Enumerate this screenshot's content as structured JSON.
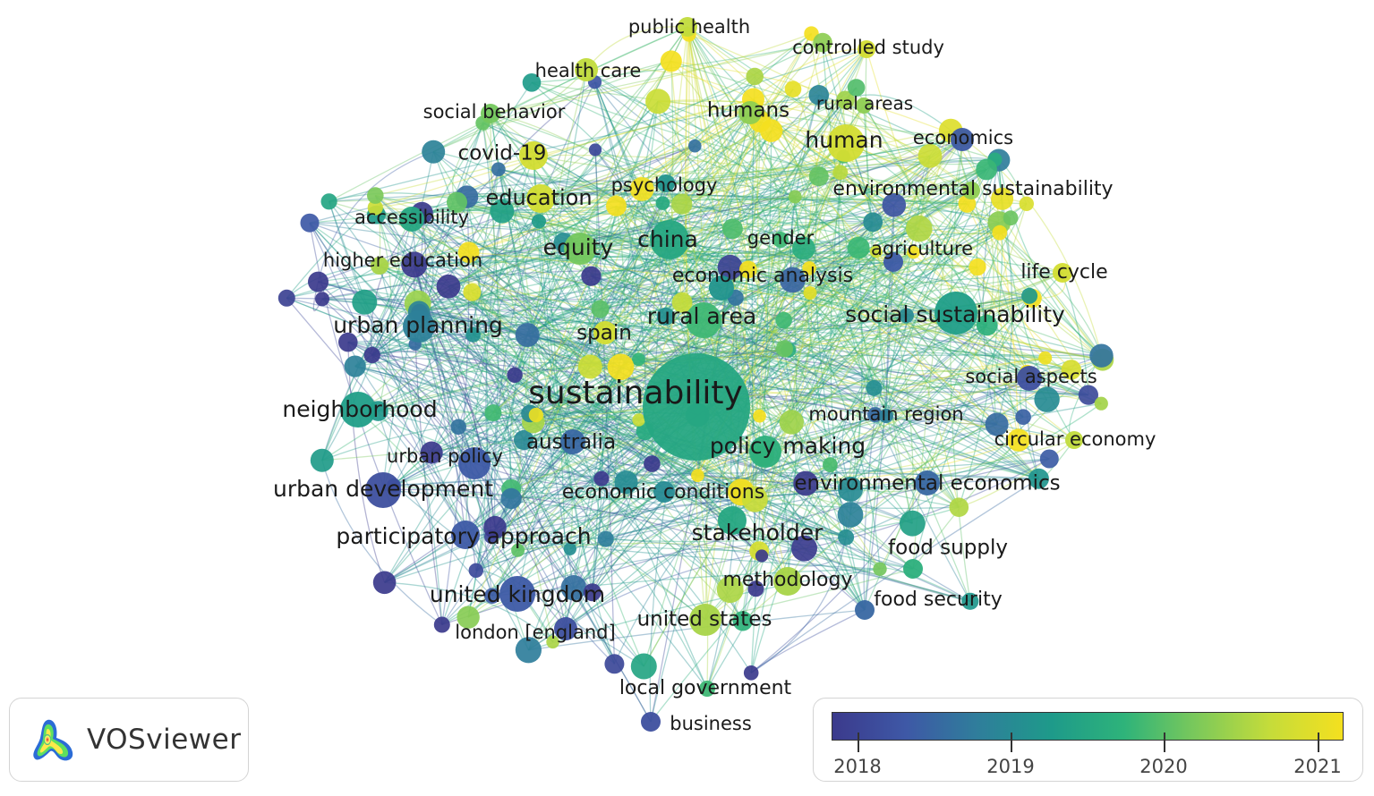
{
  "app": {
    "logo_text": "VOSviewer"
  },
  "colors": {
    "scale": [
      "#3b3a8c",
      "#3e58a6",
      "#2f7e9b",
      "#1e9a8a",
      "#2eb37a",
      "#7cc95a",
      "#c5dc3a",
      "#f4e01f"
    ],
    "y2018": "#5a4ea6",
    "y2019": "#2a8a96",
    "y2020": "#5cc26a",
    "y2021": "#f2de1f"
  },
  "legend": {
    "labels": [
      "2018",
      "2019",
      "2020",
      "2021"
    ],
    "fractions": [
      0.05,
      0.35,
      0.65,
      0.95
    ]
  },
  "network": {
    "keywords": [
      {
        "name": "public health",
        "score": 0.85
      },
      {
        "name": "controlled study",
        "score": 0.9
      },
      {
        "name": "health care",
        "score": 0.85
      },
      {
        "name": "rural areas",
        "score": 0.75
      },
      {
        "name": "social behavior",
        "score": 0.7
      },
      {
        "name": "humans",
        "score": 0.75
      },
      {
        "name": "human",
        "score": 0.9
      },
      {
        "name": "economics",
        "score": 0.15
      },
      {
        "name": "covid-19",
        "score": 0.9
      },
      {
        "name": "psychology",
        "score": 0.4
      },
      {
        "name": "education",
        "score": 0.9
      },
      {
        "name": "environmental sustainability",
        "score": 0.75
      },
      {
        "name": "accessibility",
        "score": 0.5
      },
      {
        "name": "china",
        "score": 0.5
      },
      {
        "name": "gender",
        "score": 0.6
      },
      {
        "name": "equity",
        "score": 0.7
      },
      {
        "name": "agriculture",
        "score": 0.15
      },
      {
        "name": "higher education",
        "score": 0.8
      },
      {
        "name": "economic analysis",
        "score": 0.4
      },
      {
        "name": "life cycle",
        "score": 0.9
      },
      {
        "name": "social sustainability",
        "score": 0.45
      },
      {
        "name": "urban planning",
        "score": 0.3
      },
      {
        "name": "rural area",
        "score": 0.6
      },
      {
        "name": "spain",
        "score": 0.9
      },
      {
        "name": "social aspects",
        "score": 0.1
      },
      {
        "name": "sustainability",
        "score": 0.5
      },
      {
        "name": "neighborhood",
        "score": 0.45
      },
      {
        "name": "mountain region",
        "score": 0.3
      },
      {
        "name": "circular economy",
        "score": 0.85
      },
      {
        "name": "australia",
        "score": 0.2
      },
      {
        "name": "policy making",
        "score": 0.55
      },
      {
        "name": "urban policy",
        "score": 0.15
      },
      {
        "name": "urban development",
        "score": 0.1
      },
      {
        "name": "environmental economics",
        "score": 0.2
      },
      {
        "name": "economic conditions",
        "score": 0.35
      },
      {
        "name": "participatory approach",
        "score": 0.15
      },
      {
        "name": "stakeholder",
        "score": 0.5
      },
      {
        "name": "food supply",
        "score": 0.55
      },
      {
        "name": "methodology",
        "score": 0.8
      },
      {
        "name": "united kingdom",
        "score": 0.15
      },
      {
        "name": "food security",
        "score": 0.2
      },
      {
        "name": "united states",
        "score": 0.8
      },
      {
        "name": "london [england]",
        "score": 0.1
      },
      {
        "name": "local government",
        "score": 0.6
      },
      {
        "name": "business",
        "score": 0.1
      }
    ]
  }
}
